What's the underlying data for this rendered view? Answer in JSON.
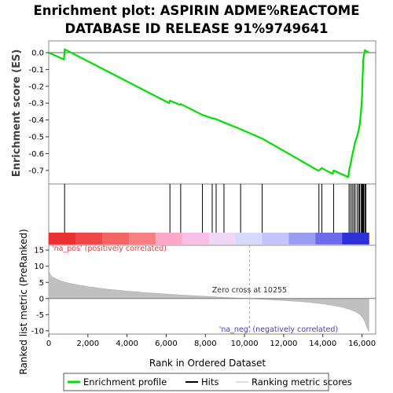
{
  "chart_data": {
    "type": "line",
    "title": [
      "Enrichment plot: ASPIRIN ADME%REACTOME",
      "DATABASE ID RELEASE 91%9749641"
    ],
    "top_panel": {
      "ylabel": "Enrichment score (ES)",
      "ylim": [
        -0.78,
        0.07
      ],
      "yticks": [
        0.0,
        -0.1,
        -0.2,
        -0.3,
        -0.4,
        -0.5,
        -0.6,
        -0.7
      ],
      "ytick_labels": [
        "0.0",
        "-0.1",
        "-0.2",
        "-0.3",
        "-0.4",
        "-0.5",
        "-0.6",
        "-0.7"
      ],
      "series": [
        {
          "name": "Enrichment profile",
          "color": "#00e000",
          "x": [
            0,
            780,
            810,
            6150,
            6190,
            6700,
            6740,
            7850,
            8350,
            8550,
            8950,
            9800,
            10900,
            13750,
            13800,
            13950,
            14000,
            14500,
            14550,
            15300,
            15340,
            15420,
            15500,
            15580,
            15650,
            15750,
            15830,
            15880,
            15950,
            16000,
            16030,
            16060,
            16090,
            16150,
            16200,
            16350
          ],
          "y": [
            0.0,
            -0.04,
            0.02,
            -0.3,
            -0.285,
            -0.31,
            -0.305,
            -0.37,
            -0.39,
            -0.395,
            -0.415,
            -0.455,
            -0.51,
            -0.7,
            -0.7,
            -0.685,
            -0.69,
            -0.72,
            -0.7,
            -0.74,
            -0.7,
            -0.66,
            -0.61,
            -0.57,
            -0.53,
            -0.5,
            -0.46,
            -0.43,
            -0.35,
            -0.26,
            -0.15,
            -0.05,
            -0.02,
            0.015,
            0.01,
            0.0
          ]
        }
      ]
    },
    "hits_panel": {
      "hit_positions": [
        810,
        6190,
        6740,
        7850,
        8350,
        8550,
        8950,
        9800,
        10900,
        13800,
        13950,
        14550,
        15340,
        15420,
        15500,
        15580,
        15650,
        15750,
        15830,
        15880,
        15950,
        16000,
        16030,
        16060,
        16090,
        16150,
        16200
      ],
      "ranking_bar_colors": [
        "#ea3030",
        "#f04848",
        "#f56464",
        "#f88080",
        "#fba8c8",
        "#f8c0e6",
        "#eed6f4",
        "#d8d8fc",
        "#c4c4fa",
        "#9c9cf2",
        "#6c6cea",
        "#3030d8"
      ]
    },
    "bottom_panel": {
      "ylabel": "Ranked list metric (PreRanked)",
      "xlabel": "Rank in Ordered Dataset",
      "xlim": [
        0,
        16700
      ],
      "ylim": [
        -11,
        16.5
      ],
      "yticks": [
        15,
        10,
        5,
        0,
        -5,
        -10
      ],
      "ytick_labels": [
        "15",
        "10",
        "5",
        "0",
        "-5",
        "-10"
      ],
      "xticks": [
        0,
        2000,
        4000,
        6000,
        8000,
        10000,
        12000,
        14000,
        16000
      ],
      "xtick_labels": [
        "0",
        "2,000",
        "4,000",
        "6,000",
        "8,000",
        "10,000",
        "12,000",
        "14,000",
        "16,000"
      ],
      "metric_curve": {
        "x": [
          0,
          40,
          100,
          200,
          400,
          700,
          1000,
          1500,
          2000,
          3000,
          4000,
          5000,
          6000,
          7000,
          8000,
          9000,
          10255,
          11000,
          12000,
          13000,
          13800,
          14500,
          15000,
          15400,
          15700,
          15900,
          16050,
          16150,
          16250,
          16350
        ],
        "y": [
          9.0,
          8.0,
          7.2,
          6.6,
          6.0,
          5.3,
          4.8,
          4.2,
          3.7,
          2.9,
          2.3,
          1.8,
          1.4,
          1.0,
          0.7,
          0.35,
          0.0,
          -0.3,
          -0.6,
          -1.0,
          -1.5,
          -2.1,
          -2.7,
          -3.4,
          -4.2,
          -5.0,
          -6.0,
          -7.2,
          -9.0,
          -10.2
        ]
      },
      "zero_cross": 10255,
      "zero_cross_label": "Zero cross at 10255",
      "pos_label": "'na_pos' (positively correlated)",
      "neg_label": "'na_neg' (negatively correlated)",
      "pos_color": "#e04040",
      "neg_color": "#4040d0"
    },
    "legend": {
      "items": [
        {
          "label": "Enrichment profile",
          "color": "#00e000"
        },
        {
          "label": "Hits",
          "color": "#000000"
        },
        {
          "label": "Ranking metric scores",
          "color": "#c8c8c8"
        }
      ],
      "placement": "bottom"
    }
  }
}
